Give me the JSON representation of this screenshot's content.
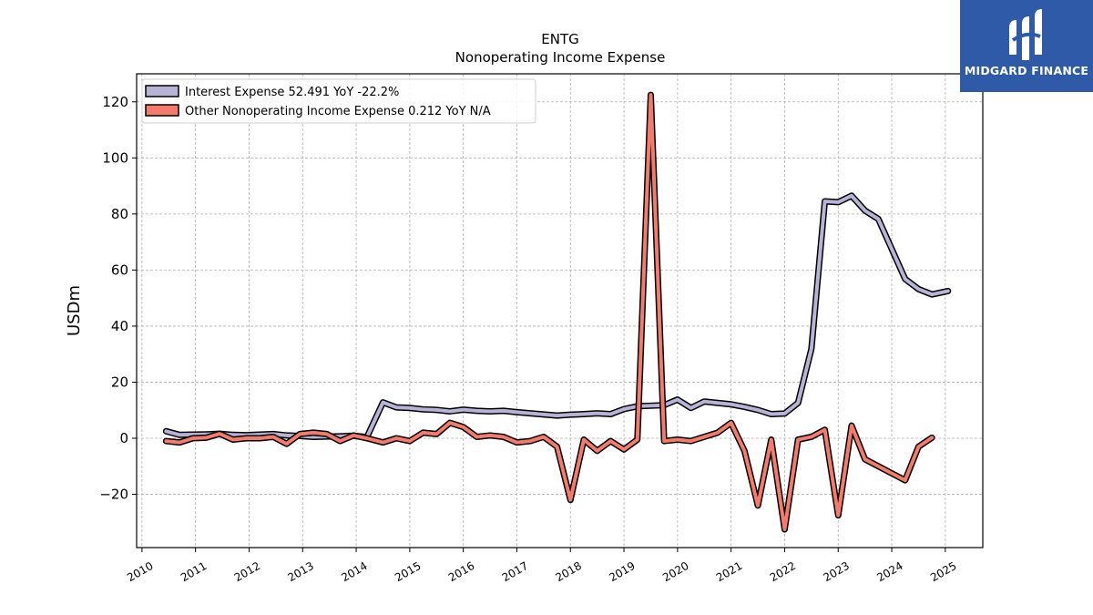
{
  "chart_data": {
    "type": "line",
    "title": "ENTG",
    "subtitle": "Nonoperating Income Expense",
    "ylabel": "USDm",
    "xlabel": "",
    "xlim": [
      2009.9,
      2025.7
    ],
    "ylim": [
      -39,
      130
    ],
    "grid": true,
    "legend_position": "top-left",
    "x_ticks": [
      2010,
      2011,
      2012,
      2013,
      2014,
      2015,
      2016,
      2017,
      2018,
      2019,
      2020,
      2021,
      2022,
      2023,
      2024,
      2025
    ],
    "x_tick_labels": [
      "2010",
      "2011",
      "2012",
      "2013",
      "2014",
      "2015",
      "2016",
      "2017",
      "2018",
      "2019",
      "2020",
      "2021",
      "2022",
      "2023",
      "2024",
      "2025"
    ],
    "y_ticks": [
      -20,
      0,
      20,
      40,
      60,
      80,
      100,
      120
    ],
    "y_tick_labels": [
      "−20",
      "0",
      "20",
      "40",
      "60",
      "80",
      "100",
      "120"
    ],
    "series": [
      {
        "name": "Interest Expense",
        "legend_label": "Interest Expense  52.491 YoY -22.2%",
        "color": "#b6b3d6",
        "x": [
          2010.45,
          2010.7,
          2010.95,
          2011.2,
          2011.45,
          2011.7,
          2011.95,
          2012.2,
          2012.45,
          2012.7,
          2012.95,
          2013.2,
          2013.45,
          2013.7,
          2013.95,
          2014.2,
          2014.5,
          2014.75,
          2015.0,
          2015.25,
          2015.5,
          2015.75,
          2016.0,
          2016.25,
          2016.5,
          2016.75,
          2017.0,
          2017.25,
          2017.5,
          2017.75,
          2018.0,
          2018.25,
          2018.5,
          2018.75,
          2019.0,
          2019.25,
          2019.5,
          2019.75,
          2020.0,
          2020.25,
          2020.5,
          2020.75,
          2021.0,
          2021.25,
          2021.5,
          2021.75,
          2022.0,
          2022.25,
          2022.5,
          2022.75,
          2023.0,
          2023.25,
          2023.5,
          2023.75,
          2024.0,
          2024.25,
          2024.5,
          2024.75,
          2025.05
        ],
        "values": [
          2.5,
          1.2,
          1.3,
          1.4,
          1.6,
          1.2,
          1.1,
          1.3,
          1.5,
          1.0,
          0.8,
          0.5,
          0.6,
          0.7,
          0.9,
          0.4,
          12.8,
          11.0,
          10.8,
          10.3,
          10.1,
          9.6,
          10.2,
          9.8,
          9.6,
          9.8,
          9.3,
          8.9,
          8.5,
          8.1,
          8.4,
          8.6,
          8.9,
          8.6,
          10.4,
          11.4,
          11.6,
          11.8,
          13.8,
          10.8,
          13.1,
          12.6,
          12.1,
          11.2,
          10.1,
          8.6,
          8.8,
          12.6,
          31.9,
          84.5,
          84.2,
          86.5,
          81.2,
          78.2,
          67.5,
          56.8,
          53.2,
          51.3,
          52.5
        ]
      },
      {
        "name": "Other Nonoperating Income Expense",
        "legend_label": "Other Nonoperating Income Expense  0.212 YoY N/A",
        "color": "#f47b6b",
        "x": [
          2010.45,
          2010.7,
          2010.95,
          2011.2,
          2011.45,
          2011.7,
          2011.95,
          2012.2,
          2012.45,
          2012.7,
          2012.95,
          2013.2,
          2013.45,
          2013.7,
          2013.95,
          2014.2,
          2014.5,
          2014.75,
          2015.0,
          2015.25,
          2015.5,
          2015.75,
          2016.0,
          2016.25,
          2016.5,
          2016.75,
          2017.0,
          2017.25,
          2017.5,
          2017.75,
          2018.0,
          2018.25,
          2018.5,
          2018.75,
          2019.0,
          2019.25,
          2019.5,
          2019.75,
          2020.0,
          2020.25,
          2020.5,
          2020.75,
          2021.0,
          2021.25,
          2021.5,
          2021.75,
          2022.0,
          2022.25,
          2022.5,
          2022.75,
          2023.0,
          2023.25,
          2023.5,
          2023.75,
          2024.0,
          2024.25,
          2024.5,
          2024.75
        ],
        "values": [
          -1.0,
          -1.5,
          0.0,
          0.2,
          1.6,
          -0.5,
          0.0,
          0.0,
          0.5,
          -2.0,
          1.5,
          2.0,
          1.5,
          -1.0,
          1.0,
          0.0,
          -1.5,
          0.0,
          -1.0,
          2.0,
          1.5,
          5.5,
          4.0,
          0.5,
          1.0,
          0.5,
          -1.5,
          -1.0,
          0.5,
          -3.0,
          -22.0,
          -0.5,
          -4.5,
          -1.0,
          -4.0,
          -0.5,
          122.5,
          -1.0,
          -0.5,
          -1.0,
          0.5,
          2.0,
          5.5,
          -4.5,
          -24.0,
          -0.5,
          -32.5,
          -0.5,
          0.5,
          3.0,
          -27.5,
          4.5,
          -7.5,
          -10.0,
          -12.5,
          -15.0,
          -3.0,
          0.2
        ]
      }
    ]
  },
  "branding": {
    "logo_text": "MIDGARD FINANCE",
    "logo_icon": "midgard-finance-logo-icon",
    "logo_color": "#2e5aa8"
  }
}
